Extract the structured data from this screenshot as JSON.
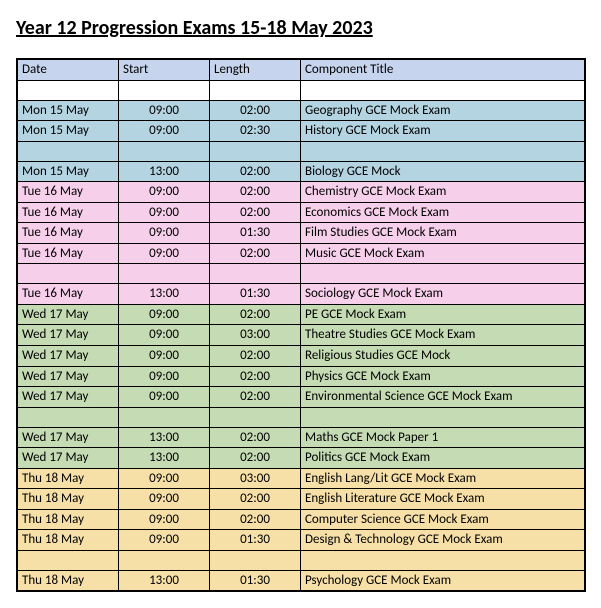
{
  "title": "Year 12 Progression Exams 15-18 May 2023",
  "columns": [
    "Date",
    "Start",
    "Length",
    "Component Title"
  ],
  "colors": {
    "header": "#c6d5ed",
    "white": "#ffffff",
    "blue": "#b4d4e2",
    "pink": "#f6cfea",
    "green": "#c5dbb4",
    "yellow": "#f6e0a8"
  },
  "rows": [
    {
      "type": "spacer",
      "color": "white"
    },
    {
      "date": "Mon 15 May",
      "start": "09:00",
      "length": "02:00",
      "title": "Geography GCE Mock Exam",
      "color": "blue"
    },
    {
      "date": "Mon 15 May",
      "start": "09:00",
      "length": "02:30",
      "title": "History GCE Mock Exam",
      "color": "blue"
    },
    {
      "type": "spacer",
      "color": "blue"
    },
    {
      "date": "Mon 15 May",
      "start": "13:00",
      "length": "02:00",
      "title": "Biology GCE Mock",
      "color": "blue"
    },
    {
      "date": "Tue 16 May",
      "start": "09:00",
      "length": "02:00",
      "title": "Chemistry GCE Mock Exam",
      "color": "pink"
    },
    {
      "date": "Tue 16 May",
      "start": "09:00",
      "length": "02:00",
      "title": "Economics GCE Mock Exam",
      "color": "pink"
    },
    {
      "date": "Tue 16 May",
      "start": "09:00",
      "length": "01:30",
      "title": "Film Studies GCE Mock Exam",
      "color": "pink"
    },
    {
      "date": "Tue 16 May",
      "start": "09:00",
      "length": "02:00",
      "title": "Music GCE Mock Exam",
      "color": "pink"
    },
    {
      "type": "spacer",
      "color": "pink"
    },
    {
      "date": "Tue 16 May",
      "start": "13:00",
      "length": "01:30",
      "title": "Sociology GCE Mock Exam",
      "color": "pink"
    },
    {
      "date": "Wed 17 May",
      "start": "09:00",
      "length": "02:00",
      "title": "PE GCE Mock Exam",
      "color": "green"
    },
    {
      "date": "Wed 17 May",
      "start": "09:00",
      "length": "03:00",
      "title": "Theatre Studies GCE Mock Exam",
      "color": "green"
    },
    {
      "date": "Wed 17 May",
      "start": "09:00",
      "length": "02:00",
      "title": "Religious Studies GCE Mock",
      "color": "green"
    },
    {
      "date": "Wed 17 May",
      "start": "09:00",
      "length": "02:00",
      "title": "Physics GCE Mock Exam",
      "color": "green"
    },
    {
      "date": "Wed 17 May",
      "start": "09:00",
      "length": "02:00",
      "title": "Environmental Science GCE Mock Exam",
      "color": "green"
    },
    {
      "type": "spacer",
      "color": "green"
    },
    {
      "date": "Wed 17 May",
      "start": "13:00",
      "length": "02:00",
      "title": "Maths GCE Mock Paper 1",
      "color": "green"
    },
    {
      "date": "Wed 17 May",
      "start": "13:00",
      "length": "02:00",
      "title": "Politics GCE Mock Exam",
      "color": "green"
    },
    {
      "date": "Thu 18 May",
      "start": "09:00",
      "length": "03:00",
      "title": "English Lang/Lit GCE Mock Exam",
      "color": "yellow"
    },
    {
      "date": "Thu 18 May",
      "start": "09:00",
      "length": "02:00",
      "title": "English Literature GCE Mock Exam",
      "color": "yellow"
    },
    {
      "date": "Thu 18 May",
      "start": "09:00",
      "length": "02:00",
      "title": "Computer Science GCE Mock Exam",
      "color": "yellow"
    },
    {
      "date": "Thu 18 May",
      "start": "09:00",
      "length": "01:30",
      "title": "Design & Technology GCE Mock Exam",
      "color": "yellow"
    },
    {
      "type": "spacer",
      "color": "yellow"
    },
    {
      "date": "Thu 18 May",
      "start": "13:00",
      "length": "01:30",
      "title": "Psychology GCE Mock Exam",
      "color": "yellow"
    }
  ]
}
